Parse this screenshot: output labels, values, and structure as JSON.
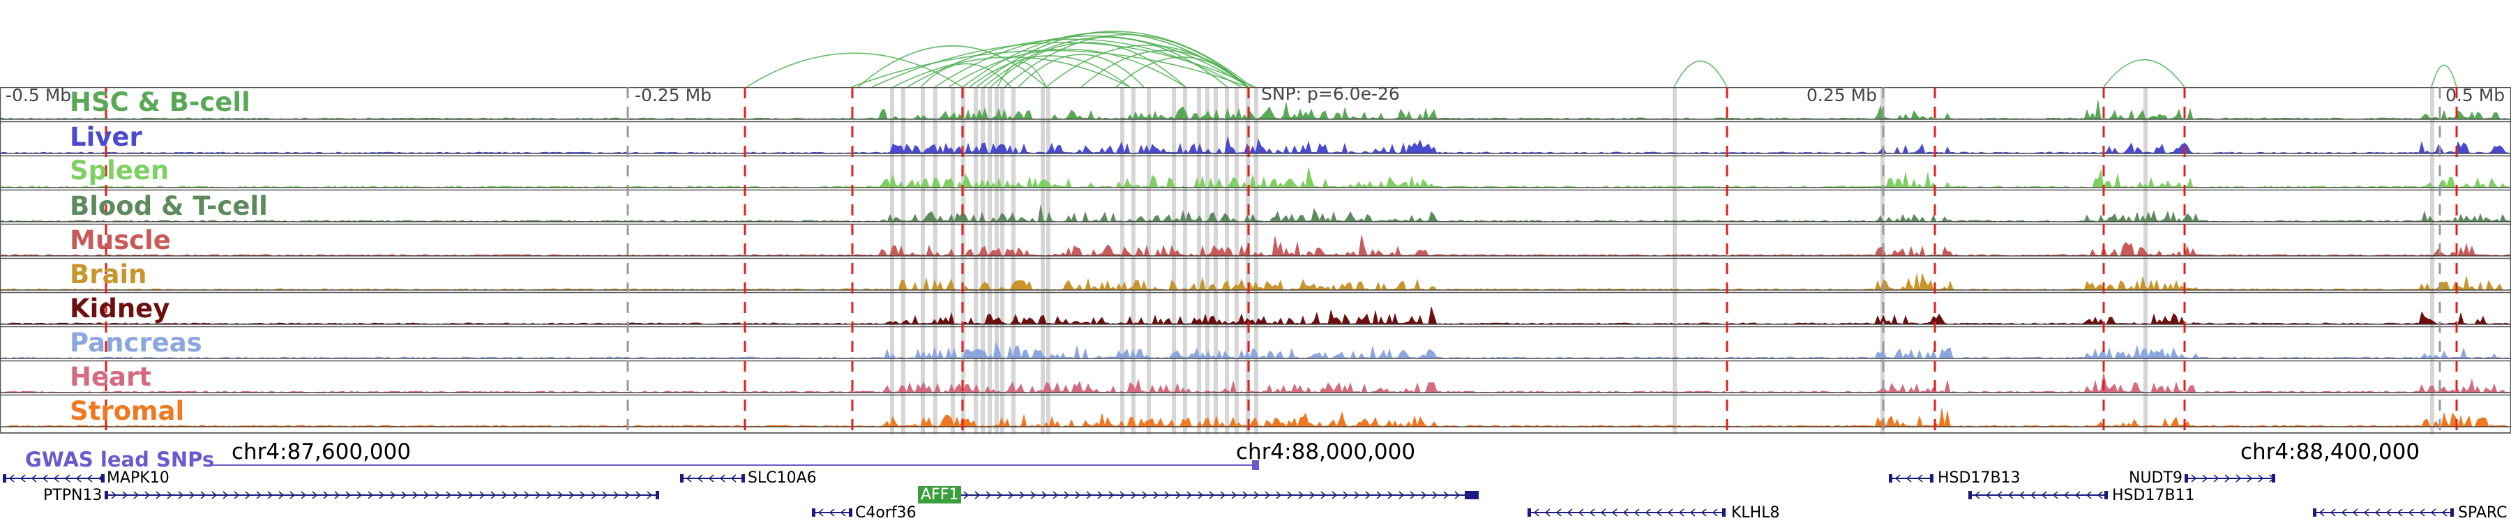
{
  "scale": {
    "labels": [
      "-0.5 Mb",
      "-0.25 Mb",
      "0.25 Mb",
      "0.5 Mb"
    ],
    "snp_label": "SNP: p=6.0e-26"
  },
  "tracks": [
    {
      "name": "HSC & B-cell",
      "color": "#59a857"
    },
    {
      "name": "Liver",
      "color": "#4a4ad0"
    },
    {
      "name": "Spleen",
      "color": "#7fcf63"
    },
    {
      "name": "Blood & T-cell",
      "color": "#5c8a5c"
    },
    {
      "name": "Muscle",
      "color": "#c85a5a"
    },
    {
      "name": "Brain",
      "color": "#c8962c"
    },
    {
      "name": "Kidney",
      "color": "#6b0f0f"
    },
    {
      "name": "Pancreas",
      "color": "#8ca6df"
    },
    {
      "name": "Heart",
      "color": "#d46a80"
    },
    {
      "name": "Stromal",
      "color": "#f07820"
    }
  ],
  "coordinates": [
    "chr4:87,600,000",
    "chr4:88,000,000",
    "chr4:88,400,000"
  ],
  "gwas": {
    "title": "GWAS lead SNPs",
    "color": "#6a5acd"
  },
  "genes": {
    "MAPK10": "MAPK10",
    "SLC10A6": "SLC10A6",
    "HSD17B13": "HSD17B13",
    "NUDT9": "NUDT9",
    "PTPN13": "PTPN13",
    "AFF1": "AFF1",
    "HSD17B11": "HSD17B11",
    "C4orf36": "C4orf36",
    "KLHL8": "KLHL8",
    "SPARCL1": "SPARC"
  },
  "colors": {
    "loop": "#4caf50",
    "red_dash": "#e0201a",
    "gray_band": "#c8c8c8",
    "gene": "#1a1a80"
  }
}
